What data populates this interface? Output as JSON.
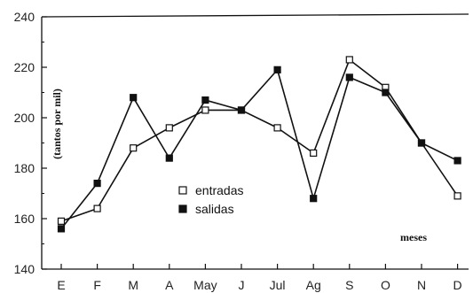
{
  "chart_data": {
    "type": "line",
    "categories": [
      "E",
      "F",
      "M",
      "A",
      "May",
      "J",
      "Jul",
      "Ag",
      "S",
      "O",
      "N",
      "D"
    ],
    "series": [
      {
        "name": "entradas",
        "marker": "hollow-square",
        "values": [
          159,
          164,
          188,
          196,
          203,
          203,
          196,
          186,
          223,
          212,
          190,
          169
        ]
      },
      {
        "name": "salidas",
        "marker": "filled-square",
        "values": [
          156,
          174,
          208,
          184,
          207,
          203,
          219,
          168,
          216,
          210,
          190,
          183
        ]
      }
    ],
    "title": "",
    "xlabel": "meses",
    "ylabel": "(tantos por mil)",
    "ylim": [
      140,
      240
    ],
    "yticks": [
      140,
      160,
      180,
      200,
      220,
      240
    ],
    "grid": false,
    "legend_position": "bottom-center",
    "colors": {
      "line": "#111111",
      "axis": "#111111",
      "background": "#ffffff"
    }
  }
}
